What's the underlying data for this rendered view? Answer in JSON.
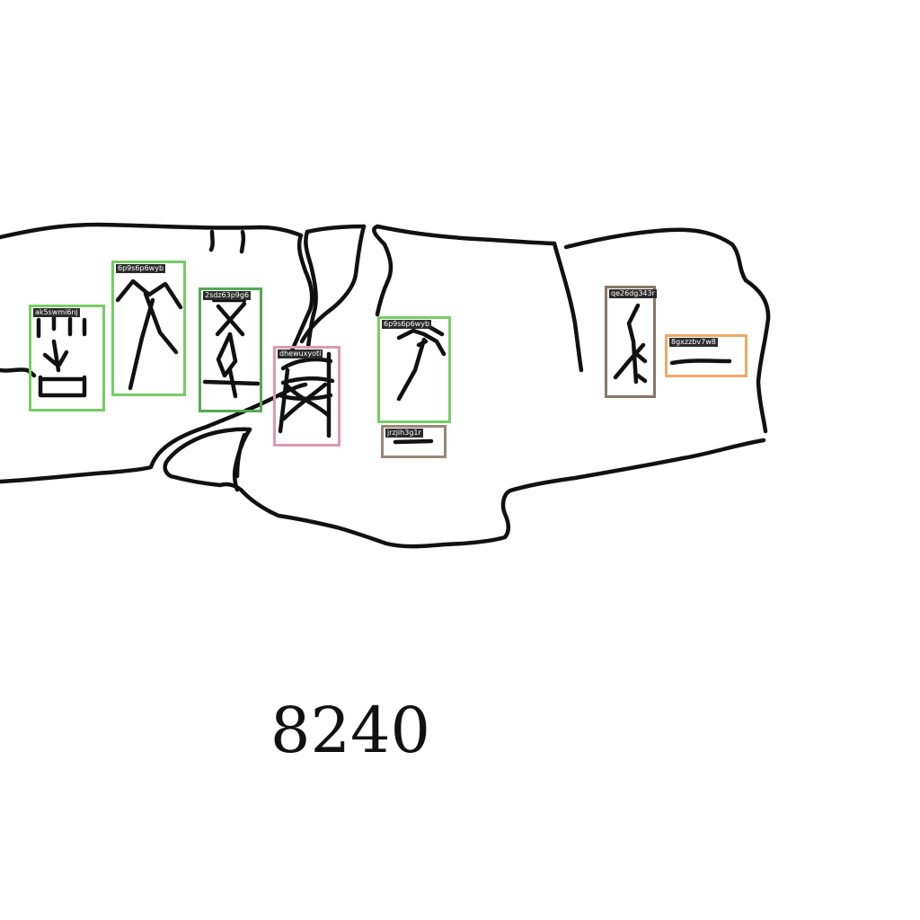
{
  "image": {
    "plate_number": "8240"
  },
  "annotations": [
    {
      "label": "ak5swmi6nj",
      "color": "#77cc66"
    },
    {
      "label": "6p9s6p6wyb",
      "color": "#77cc66"
    },
    {
      "label": "2sdz63p9g6",
      "color": "#55aa55"
    },
    {
      "label": "dhewuxyotl",
      "color": "#dd99b0"
    },
    {
      "label": "6p9s6p6wyb",
      "color": "#77cc66"
    },
    {
      "label": "jrzjih3g1r",
      "color": "#998877"
    },
    {
      "label": "qe26dg343r",
      "color": "#887766"
    },
    {
      "label": "8gxzzbv7w8",
      "color": "#eeaa66"
    }
  ]
}
